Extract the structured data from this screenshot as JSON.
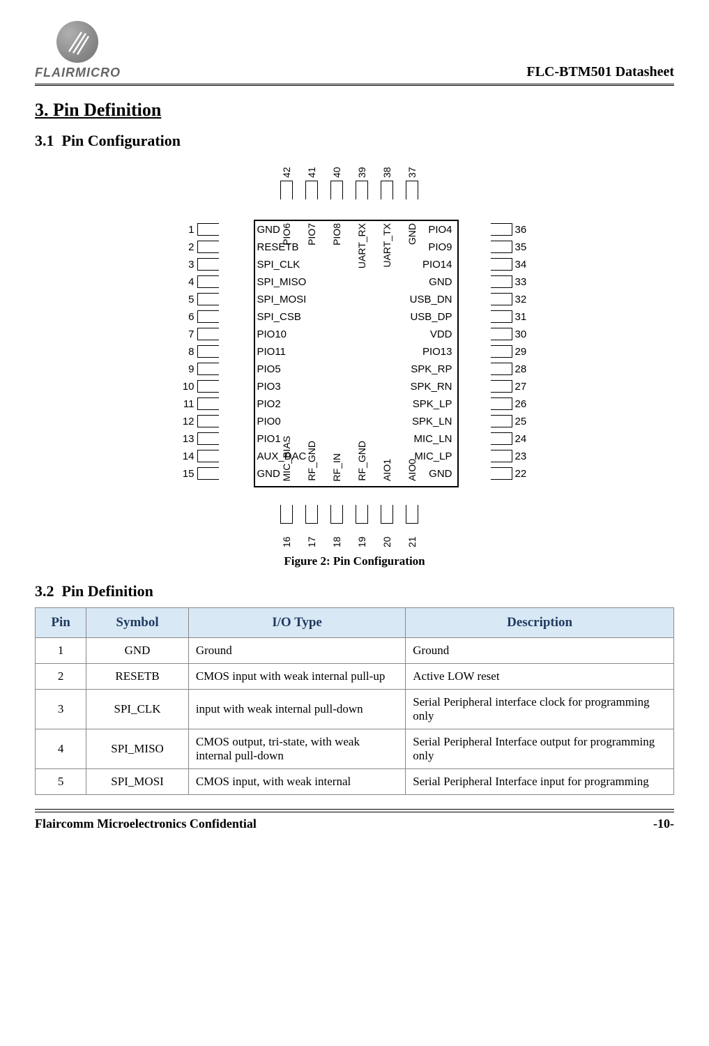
{
  "header": {
    "logo_text": "FLAIRMICRO",
    "doc_title": "FLC-BTM501 Datasheet"
  },
  "section": {
    "number": "3.",
    "title": "Pin Definition"
  },
  "subsection1": {
    "number": "3.1",
    "title": "Pin Configuration"
  },
  "subsection2": {
    "number": "3.2",
    "title": "Pin Definition"
  },
  "figure_caption": "Figure 2: Pin Configuration",
  "chip": {
    "left": [
      {
        "num": "1",
        "label": "GND"
      },
      {
        "num": "2",
        "label": "RESETB"
      },
      {
        "num": "3",
        "label": "SPI_CLK"
      },
      {
        "num": "4",
        "label": "SPI_MISO"
      },
      {
        "num": "5",
        "label": "SPI_MOSI"
      },
      {
        "num": "6",
        "label": "SPI_CSB"
      },
      {
        "num": "7",
        "label": "PIO10"
      },
      {
        "num": "8",
        "label": "PIO11"
      },
      {
        "num": "9",
        "label": "PIO5"
      },
      {
        "num": "10",
        "label": "PIO3"
      },
      {
        "num": "11",
        "label": "PIO2"
      },
      {
        "num": "12",
        "label": "PIO0"
      },
      {
        "num": "13",
        "label": "PIO1"
      },
      {
        "num": "14",
        "label": "AUX_DAC"
      },
      {
        "num": "15",
        "label": "GND"
      }
    ],
    "right": [
      {
        "num": "36",
        "label": "PIO4"
      },
      {
        "num": "35",
        "label": "PIO9"
      },
      {
        "num": "34",
        "label": "PIO14"
      },
      {
        "num": "33",
        "label": "GND"
      },
      {
        "num": "32",
        "label": "USB_DN"
      },
      {
        "num": "31",
        "label": "USB_DP"
      },
      {
        "num": "30",
        "label": "VDD"
      },
      {
        "num": "29",
        "label": "PIO13"
      },
      {
        "num": "28",
        "label": "SPK_RP"
      },
      {
        "num": "27",
        "label": "SPK_RN"
      },
      {
        "num": "26",
        "label": "SPK_LP"
      },
      {
        "num": "25",
        "label": "SPK_LN"
      },
      {
        "num": "24",
        "label": "MIC_LN"
      },
      {
        "num": "23",
        "label": "MIC_LP"
      },
      {
        "num": "22",
        "label": "GND"
      }
    ],
    "top": [
      {
        "num": "42",
        "label": "PIO6"
      },
      {
        "num": "41",
        "label": "PIO7"
      },
      {
        "num": "40",
        "label": "PIO8"
      },
      {
        "num": "39",
        "label": "UART_RX"
      },
      {
        "num": "38",
        "label": "UART_TX"
      },
      {
        "num": "37",
        "label": "GND"
      }
    ],
    "bottom": [
      {
        "num": "16",
        "label": "MIC_BIAS"
      },
      {
        "num": "17",
        "label": "RF_GND"
      },
      {
        "num": "18",
        "label": "RF_IN"
      },
      {
        "num": "19",
        "label": "RF_GND"
      },
      {
        "num": "20",
        "label": "AIO1"
      },
      {
        "num": "21",
        "label": "AIO0"
      }
    ]
  },
  "table": {
    "headers": [
      "Pin",
      "Symbol",
      "I/O Type",
      "Description"
    ],
    "header_bg": "#d9e8f5",
    "header_color": "#1f3a5f",
    "col_widths": [
      "8%",
      "16%",
      "34%",
      "42%"
    ],
    "rows": [
      {
        "pin": "1",
        "sym": "GND",
        "io": "Ground",
        "desc": "Ground"
      },
      {
        "pin": "2",
        "sym": "RESETB",
        "io": "CMOS input with weak internal pull-up",
        "desc": "Active LOW reset"
      },
      {
        "pin": "3",
        "sym": "SPI_CLK",
        "io": "input with weak internal pull-down",
        "desc": "Serial Peripheral interface clock for programming only"
      },
      {
        "pin": "4",
        "sym": "SPI_MISO",
        "io": "CMOS output, tri-state, with weak internal pull-down",
        "desc": "Serial Peripheral Interface output for programming only"
      },
      {
        "pin": "5",
        "sym": "SPI_MOSI",
        "io": "CMOS input, with weak internal",
        "desc": "Serial Peripheral Interface input for programming"
      }
    ]
  },
  "footer": {
    "left": "Flaircomm Microelectronics Confidential",
    "right": "-10-"
  }
}
